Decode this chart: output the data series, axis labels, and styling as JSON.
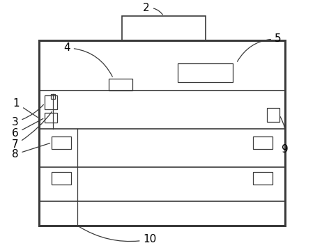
{
  "bg_color": "#ffffff",
  "line_color": "#3a3a3a",
  "outer_lw": 2.2,
  "inner_lw": 1.2,
  "thin_lw": 0.9,
  "fig_width": 4.62,
  "fig_height": 3.59,
  "dpi": 100
}
